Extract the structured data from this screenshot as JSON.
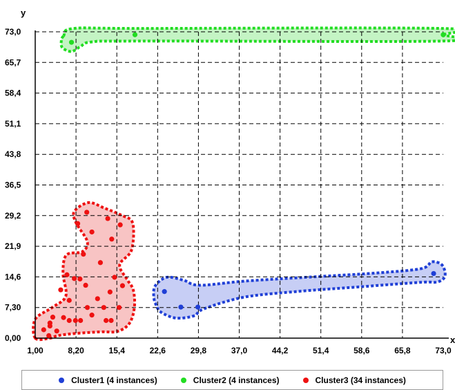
{
  "chart_data": {
    "type": "scatter",
    "xlabel": "x",
    "ylabel": "y",
    "xlim": [
      1.0,
      73.0
    ],
    "ylim": [
      0.0,
      73.0
    ],
    "x_ticks": [
      "1,00",
      "8,20",
      "15,4",
      "22,6",
      "29,8",
      "37,0",
      "44,2",
      "51,4",
      "58,6",
      "65,8",
      "73,0"
    ],
    "y_ticks": [
      "0,00",
      "7,30",
      "14,6",
      "21,9",
      "29,2",
      "36,5",
      "43,8",
      "51,1",
      "58,4",
      "65,7",
      "73,0"
    ],
    "x_tick_values": [
      1.0,
      8.2,
      15.4,
      22.6,
      29.8,
      37.0,
      44.2,
      51.4,
      58.6,
      65.8,
      73.0
    ],
    "y_tick_values": [
      0.0,
      7.3,
      14.6,
      21.9,
      29.2,
      36.5,
      43.8,
      51.1,
      58.4,
      65.7,
      73.0
    ],
    "grid": true,
    "legend_position": "bottom",
    "series": [
      {
        "name": "Cluster1 (4 instances)",
        "color": "#1f3fd6",
        "fill": "#c7cef5",
        "points": [
          [
            23.8,
            11.1
          ],
          [
            26.7,
            7.4
          ],
          [
            29.7,
            7.4
          ],
          [
            71.3,
            15.4
          ]
        ],
        "hull": [
          [
            21.9,
            10.0
          ],
          [
            22.2,
            12.5
          ],
          [
            24.2,
            14.5
          ],
          [
            27.2,
            13.8
          ],
          [
            30.0,
            12.6
          ],
          [
            38.0,
            13.6
          ],
          [
            50.0,
            14.6
          ],
          [
            62.0,
            15.6
          ],
          [
            69.2,
            16.6
          ],
          [
            71.0,
            18.2
          ],
          [
            72.8,
            17.4
          ],
          [
            73.3,
            14.8
          ],
          [
            72.0,
            13.4
          ],
          [
            69.0,
            13.3
          ],
          [
            58.0,
            12.2
          ],
          [
            48.0,
            11.2
          ],
          [
            38.0,
            9.8
          ],
          [
            30.8,
            7.0
          ],
          [
            29.0,
            5.3
          ],
          [
            25.8,
            4.8
          ],
          [
            23.2,
            6.2
          ],
          [
            22.3,
            8.0
          ]
        ]
      },
      {
        "name": "Cluster2 (4 instances)",
        "color": "#22dd22",
        "fill": "#c4f4c4",
        "points": [
          [
            7.4,
            70.5
          ],
          [
            18.6,
            72.3
          ],
          [
            73.0,
            72.3
          ],
          [
            73.0,
            72.3
          ]
        ],
        "hull": [
          [
            6.0,
            72.0
          ],
          [
            7.8,
            73.8
          ],
          [
            20.0,
            73.8
          ],
          [
            72.8,
            73.8
          ],
          [
            73.2,
            72.3
          ],
          [
            72.8,
            70.8
          ],
          [
            20.0,
            70.8
          ],
          [
            11.0,
            70.6
          ],
          [
            9.0,
            69.5
          ],
          [
            7.4,
            68.3
          ],
          [
            5.8,
            69.2
          ],
          [
            5.6,
            70.8
          ]
        ]
      },
      {
        "name": "Cluster3 (34 instances)",
        "color": "#ee1111",
        "fill": "#f8c4c4",
        "points": [
          [
            10.1,
            30.0
          ],
          [
            16.0,
            27.0
          ],
          [
            14.5,
            23.6
          ],
          [
            6.6,
            15.1
          ],
          [
            7.9,
            14.2
          ],
          [
            8.9,
            14.1
          ],
          [
            14.2,
            11.0
          ],
          [
            10.2,
            7.3
          ],
          [
            13.1,
            7.3
          ],
          [
            15.8,
            7.3
          ],
          [
            4.1,
            5.0
          ],
          [
            6.0,
            4.9
          ],
          [
            7.0,
            4.2
          ],
          [
            8.1,
            4.2
          ],
          [
            9.0,
            4.2
          ],
          [
            13.5,
            4.2
          ],
          [
            14.4,
            4.2
          ],
          [
            3.6,
            3.6
          ],
          [
            3.6,
            2.9
          ],
          [
            3.4,
            0.6
          ],
          [
            4.8,
            1.7
          ],
          [
            9.9,
            12.6
          ],
          [
            12.0,
            9.4
          ],
          [
            15.0,
            14.5
          ],
          [
            16.4,
            12.5
          ],
          [
            12.5,
            18.0
          ],
          [
            11.0,
            25.3
          ],
          [
            7.0,
            9.0
          ],
          [
            5.5,
            11.5
          ],
          [
            9.5,
            20.0
          ],
          [
            8.5,
            27.3
          ],
          [
            13.8,
            28.5
          ],
          [
            11.0,
            5.5
          ],
          [
            2.5,
            2.0
          ]
        ],
        "hull": [
          [
            1.0,
            0.0
          ],
          [
            1.0,
            4.5
          ],
          [
            4.0,
            7.3
          ],
          [
            6.4,
            10.0
          ],
          [
            5.9,
            15.5
          ],
          [
            6.5,
            19.8
          ],
          [
            9.3,
            20.6
          ],
          [
            10.2,
            23.0
          ],
          [
            8.2,
            27.5
          ],
          [
            7.9,
            30.2
          ],
          [
            10.4,
            32.3
          ],
          [
            13.2,
            31.0
          ],
          [
            16.2,
            29.3
          ],
          [
            18.2,
            27.4
          ],
          [
            18.0,
            21.0
          ],
          [
            15.9,
            17.5
          ],
          [
            17.2,
            14.0
          ],
          [
            18.3,
            11.5
          ],
          [
            18.5,
            7.3
          ],
          [
            17.6,
            3.5
          ],
          [
            15.5,
            1.6
          ],
          [
            12.5,
            1.5
          ],
          [
            8.0,
            1.1
          ],
          [
            5.0,
            0.6
          ],
          [
            3.6,
            0.0
          ]
        ]
      }
    ]
  }
}
